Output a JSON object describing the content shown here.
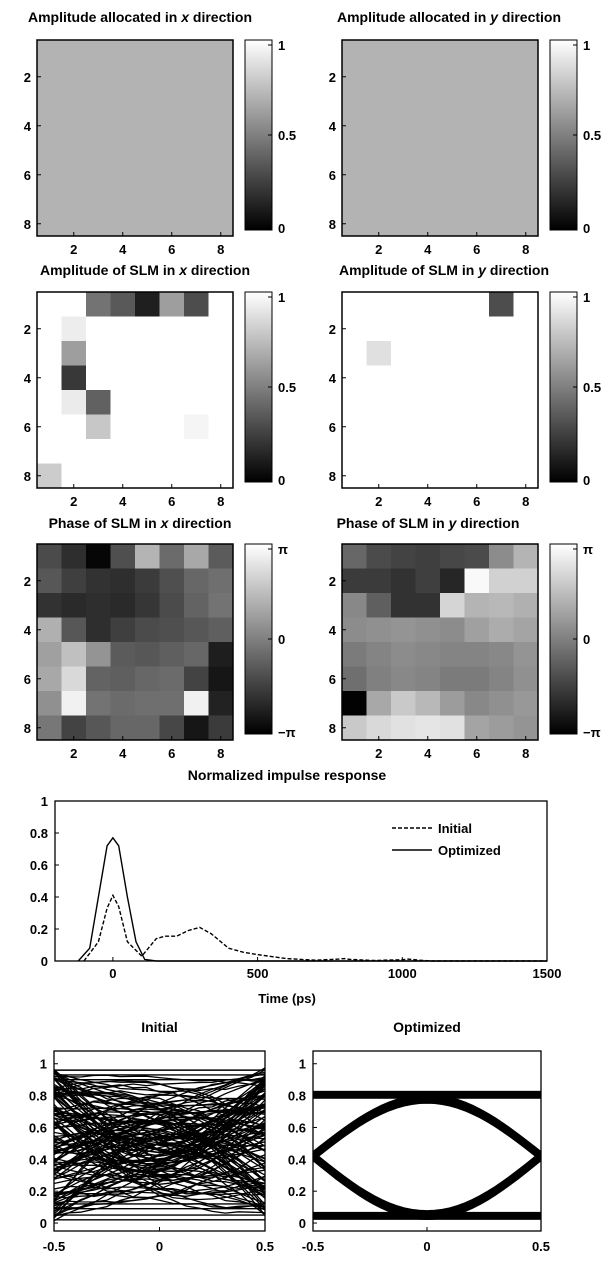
{
  "chart_data": [
    {
      "type": "heatmap",
      "title_parts": [
        "Amplitude allocated in ",
        "x",
        " direction"
      ],
      "x_ticks": [
        "2",
        "4",
        "6",
        "8"
      ],
      "y_ticks": [
        "2",
        "4",
        "6",
        "8"
      ],
      "colorbar_ticks": [
        "1",
        "0.5",
        "0"
      ],
      "range": [
        0,
        1
      ],
      "values": [
        [
          0.7,
          0.7,
          0.7,
          0.7,
          0.7,
          0.7,
          0.7,
          0.7
        ],
        [
          0.7,
          0.7,
          0.7,
          0.7,
          0.7,
          0.7,
          0.7,
          0.7
        ],
        [
          0.7,
          0.7,
          0.7,
          0.7,
          0.7,
          0.7,
          0.7,
          0.7
        ],
        [
          0.7,
          0.7,
          0.7,
          0.7,
          0.7,
          0.7,
          0.7,
          0.7
        ],
        [
          0.7,
          0.7,
          0.7,
          0.7,
          0.7,
          0.7,
          0.7,
          0.7
        ],
        [
          0.7,
          0.7,
          0.7,
          0.7,
          0.7,
          0.7,
          0.7,
          0.7
        ],
        [
          0.7,
          0.7,
          0.7,
          0.7,
          0.7,
          0.7,
          0.7,
          0.7
        ],
        [
          0.7,
          0.7,
          0.7,
          0.7,
          0.7,
          0.7,
          0.7,
          0.7
        ]
      ]
    },
    {
      "type": "heatmap",
      "title_parts": [
        "Amplitude allocated in ",
        "y",
        " direction"
      ],
      "x_ticks": [
        "2",
        "4",
        "6",
        "8"
      ],
      "y_ticks": [
        "2",
        "4",
        "6",
        "8"
      ],
      "colorbar_ticks": [
        "1",
        "0.5",
        "0"
      ],
      "range": [
        0,
        1
      ],
      "values": [
        [
          0.7,
          0.7,
          0.7,
          0.7,
          0.7,
          0.7,
          0.7,
          0.7
        ],
        [
          0.7,
          0.7,
          0.7,
          0.7,
          0.7,
          0.7,
          0.7,
          0.7
        ],
        [
          0.7,
          0.7,
          0.7,
          0.7,
          0.7,
          0.7,
          0.7,
          0.7
        ],
        [
          0.7,
          0.7,
          0.7,
          0.7,
          0.7,
          0.7,
          0.7,
          0.7
        ],
        [
          0.7,
          0.7,
          0.7,
          0.7,
          0.7,
          0.7,
          0.7,
          0.7
        ],
        [
          0.7,
          0.7,
          0.7,
          0.7,
          0.7,
          0.7,
          0.7,
          0.7
        ],
        [
          0.7,
          0.7,
          0.7,
          0.7,
          0.7,
          0.7,
          0.7,
          0.7
        ],
        [
          0.7,
          0.7,
          0.7,
          0.7,
          0.7,
          0.7,
          0.7,
          0.7
        ]
      ]
    },
    {
      "type": "heatmap",
      "title_parts": [
        "Amplitude of SLM in  ",
        "x",
        " direction"
      ],
      "x_ticks": [
        "2",
        "4",
        "6",
        "8"
      ],
      "y_ticks": [
        "2",
        "4",
        "6",
        "8"
      ],
      "colorbar_ticks": [
        "1",
        "0.5",
        "0"
      ],
      "range": [
        0,
        1
      ],
      "values": [
        [
          1.0,
          1.0,
          0.45,
          0.35,
          0.12,
          0.62,
          0.3,
          1.0
        ],
        [
          1.0,
          0.93,
          1.0,
          1.0,
          1.0,
          1.0,
          1.0,
          1.0
        ],
        [
          1.0,
          0.62,
          1.0,
          1.0,
          1.0,
          1.0,
          1.0,
          1.0
        ],
        [
          1.0,
          0.22,
          1.0,
          1.0,
          1.0,
          1.0,
          1.0,
          1.0
        ],
        [
          1.0,
          0.92,
          0.38,
          1.0,
          1.0,
          1.0,
          1.0,
          1.0
        ],
        [
          1.0,
          1.0,
          0.78,
          1.0,
          1.0,
          1.0,
          0.96,
          1.0
        ],
        [
          1.0,
          1.0,
          1.0,
          1.0,
          1.0,
          1.0,
          1.0,
          1.0
        ],
        [
          0.8,
          1.0,
          1.0,
          1.0,
          1.0,
          1.0,
          1.0,
          1.0
        ]
      ]
    },
    {
      "type": "heatmap",
      "title_parts": [
        "Amplitude of SLM in  ",
        "y",
        " direction"
      ],
      "x_ticks": [
        "2",
        "4",
        "6",
        "8"
      ],
      "y_ticks": [
        "2",
        "4",
        "6",
        "8"
      ],
      "colorbar_ticks": [
        "1",
        "0.5",
        "0"
      ],
      "range": [
        0,
        1
      ],
      "values": [
        [
          1.0,
          1.0,
          1.0,
          1.0,
          1.0,
          1.0,
          0.3,
          1.0
        ],
        [
          1.0,
          1.0,
          1.0,
          1.0,
          1.0,
          1.0,
          1.0,
          1.0
        ],
        [
          1.0,
          0.88,
          1.0,
          1.0,
          1.0,
          1.0,
          1.0,
          1.0
        ],
        [
          1.0,
          1.0,
          1.0,
          1.0,
          1.0,
          1.0,
          1.0,
          1.0
        ],
        [
          1.0,
          1.0,
          1.0,
          1.0,
          1.0,
          1.0,
          1.0,
          1.0
        ],
        [
          1.0,
          1.0,
          1.0,
          1.0,
          1.0,
          1.0,
          1.0,
          1.0
        ],
        [
          1.0,
          1.0,
          1.0,
          1.0,
          1.0,
          1.0,
          1.0,
          1.0
        ],
        [
          1.0,
          1.0,
          1.0,
          1.0,
          1.0,
          1.0,
          1.0,
          1.0
        ]
      ]
    },
    {
      "type": "heatmap",
      "title_parts": [
        "Phase of SLM in   ",
        "x",
        " direction"
      ],
      "x_ticks": [
        "2",
        "4",
        "6",
        "8"
      ],
      "y_ticks": [
        "2",
        "4",
        "6",
        "8"
      ],
      "colorbar_ticks": [
        "π",
        "0",
        "−π"
      ],
      "range": [
        -3.14159,
        3.14159
      ],
      "values": [
        [
          -1.3,
          -2.0,
          -3.0,
          -1.2,
          1.3,
          -0.5,
          1.0,
          -0.9
        ],
        [
          -1.0,
          -1.6,
          -1.9,
          -2.0,
          -1.7,
          -1.2,
          -0.6,
          -0.4
        ],
        [
          -1.9,
          -2.1,
          -2.0,
          -2.1,
          -1.8,
          -1.3,
          -0.7,
          -0.3
        ],
        [
          1.2,
          -1.0,
          -2.0,
          -1.6,
          -1.3,
          -1.2,
          -1.0,
          -0.8
        ],
        [
          0.8,
          1.6,
          0.5,
          -0.9,
          -1.0,
          -0.8,
          -0.6,
          -2.4
        ],
        [
          1.0,
          2.2,
          -0.7,
          -0.8,
          -0.6,
          -0.5,
          -1.5,
          -2.6
        ],
        [
          0.4,
          2.8,
          -0.3,
          -0.5,
          -0.4,
          -0.4,
          2.8,
          -2.3
        ],
        [
          -0.2,
          -1.5,
          -1.0,
          -0.6,
          -0.6,
          -1.4,
          -2.6,
          -1.7
        ]
      ]
    },
    {
      "type": "heatmap",
      "title_parts": [
        "Phase of SLM in   ",
        "y",
        " direction"
      ],
      "x_ticks": [
        "2",
        "4",
        "6",
        "8"
      ],
      "y_ticks": [
        "2",
        "4",
        "6",
        "8"
      ],
      "colorbar_ticks": [
        "π",
        "0",
        "−π"
      ],
      "range": [
        -3.14159,
        3.14159
      ],
      "values": [
        [
          -0.6,
          -1.3,
          -1.5,
          -1.6,
          -1.4,
          -1.3,
          0.3,
          1.3
        ],
        [
          -1.7,
          -1.7,
          -1.9,
          -1.6,
          -2.2,
          3.0,
          2.0,
          2.0
        ],
        [
          0.2,
          -0.8,
          -1.9,
          -1.9,
          2.1,
          1.3,
          1.4,
          1.2
        ],
        [
          0.3,
          0.4,
          0.5,
          0.4,
          0.3,
          0.8,
          1.1,
          0.9
        ],
        [
          -0.1,
          0.1,
          0.3,
          0.2,
          0.1,
          0.1,
          0.2,
          0.5
        ],
        [
          -0.4,
          0.0,
          0.2,
          0.1,
          -0.1,
          -0.1,
          0.1,
          0.4
        ],
        [
          -3.1,
          1.0,
          1.8,
          1.4,
          0.7,
          0.2,
          0.4,
          0.6
        ],
        [
          1.8,
          2.2,
          2.4,
          2.5,
          2.4,
          0.9,
          0.7,
          0.5
        ]
      ]
    },
    {
      "type": "line",
      "title": "Normalized impulse response",
      "xlabel": "Time (ps)",
      "xlim": [
        -200,
        1500
      ],
      "ylim": [
        0,
        1
      ],
      "x_ticks": [
        "0",
        "500",
        "1000",
        "1500"
      ],
      "y_ticks": [
        "0",
        "0.2",
        "0.4",
        "0.6",
        "0.8",
        "1"
      ],
      "legend_position": "top-right",
      "series": [
        {
          "name": "Initial",
          "style": "dashed",
          "x": [
            -100,
            -50,
            -20,
            0,
            20,
            50,
            100,
            150,
            180,
            220,
            260,
            300,
            340,
            400,
            450,
            500,
            600,
            700,
            780,
            800,
            820,
            900,
            1000,
            1020,
            1060,
            1100,
            1500
          ],
          "y": [
            0,
            0.12,
            0.33,
            0.41,
            0.34,
            0.12,
            0.03,
            0.14,
            0.155,
            0.155,
            0.19,
            0.21,
            0.17,
            0.08,
            0.055,
            0.04,
            0.015,
            0.005,
            0.012,
            0.015,
            0.01,
            0.003,
            0.008,
            0.012,
            0.005,
            0,
            0
          ]
        },
        {
          "name": "Optimized",
          "style": "solid",
          "x": [
            -120,
            -80,
            -50,
            -20,
            0,
            20,
            50,
            80,
            110,
            150,
            1500
          ],
          "y": [
            0,
            0.08,
            0.4,
            0.72,
            0.77,
            0.72,
            0.4,
            0.12,
            0.01,
            0,
            0
          ]
        }
      ]
    },
    {
      "type": "line",
      "title": "Initial",
      "description_kind": "eye diagram",
      "xlim": [
        -0.5,
        0.5
      ],
      "ylim": [
        -0.05,
        1.08
      ],
      "x_ticks": [
        "-0.5",
        "0",
        "0.5"
      ],
      "y_ticks": [
        "0",
        "0.2",
        "0.4",
        "0.6",
        "0.8",
        "1"
      ]
    },
    {
      "type": "line",
      "title": "Optimized",
      "description_kind": "eye diagram",
      "xlim": [
        -0.5,
        0.5
      ],
      "ylim": [
        -0.05,
        1.08
      ],
      "x_ticks": [
        "-0.5",
        "0",
        "0.5"
      ],
      "y_ticks": [
        "0",
        "0.2",
        "0.4",
        "0.6",
        "0.8",
        "1"
      ],
      "levels": {
        "low": [
          0.02,
          0.07
        ],
        "high": [
          0.78,
          0.83
        ],
        "eye_peak": 0.78,
        "eye_trough": 0.05
      }
    }
  ]
}
